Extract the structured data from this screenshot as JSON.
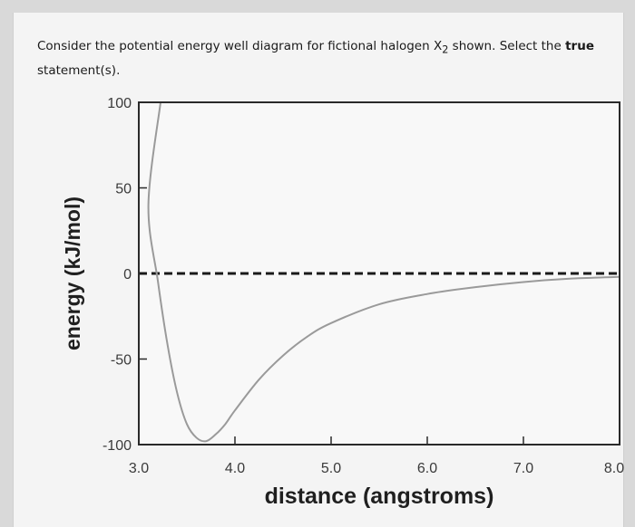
{
  "question": {
    "text_pre": "Consider the potential energy well diagram for fictional halogen X",
    "subscript": "2",
    "text_mid": " shown. Select the ",
    "text_bold": "true",
    "text_post": " statement(s)."
  },
  "chart_data": {
    "type": "line",
    "title": "",
    "xlabel": "distance (angstroms)",
    "ylabel": "energy (kJ/mol)",
    "xlim": [
      3.0,
      8.0
    ],
    "ylim": [
      -100,
      100
    ],
    "x_ticks": [
      "3.0",
      "4.0",
      "5.0",
      "6.0",
      "7.0",
      "8.0"
    ],
    "y_ticks": [
      "100",
      "50",
      "0",
      "-50",
      "-100"
    ],
    "grid": false,
    "legend": "none",
    "reference_line": {
      "y": 0,
      "style": "dashed"
    },
    "series": [
      {
        "x": [
          3.0,
          3.1,
          3.2,
          3.3,
          3.4,
          3.5,
          3.6,
          3.7,
          3.8,
          3.9,
          4.0,
          4.25,
          4.5,
          4.75,
          5.0,
          5.5,
          6.0,
          6.5,
          7.0,
          7.5,
          8.0
        ],
        "y": [
          100,
          40,
          -5,
          -42,
          -70,
          -88,
          -96,
          -98,
          -94,
          -88,
          -80,
          -62,
          -48,
          -37,
          -29,
          -18,
          -12,
          -8,
          -5,
          -3,
          -2
        ]
      }
    ]
  },
  "colors": {
    "curve": "#9a9a9a",
    "axis": "#2a2a2a",
    "plot_bg": "#f8f8f8"
  }
}
